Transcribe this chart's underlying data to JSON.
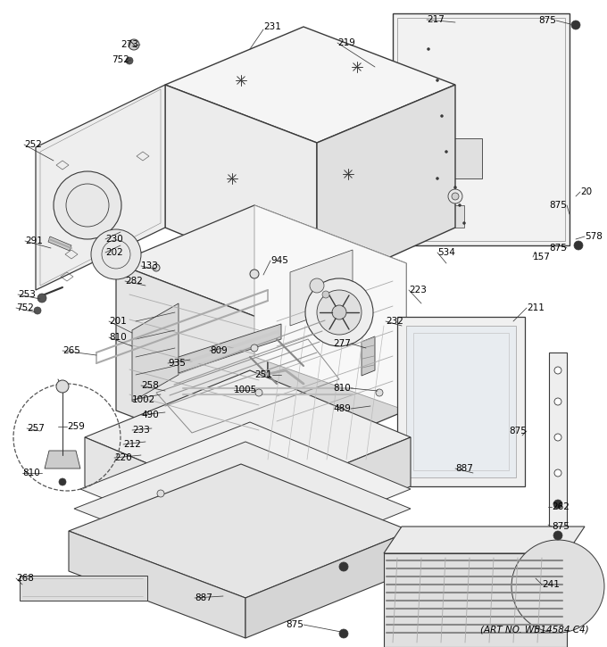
{
  "footer": "(ART NO. WB14584 C4)",
  "bg_color": "#ffffff",
  "lc": "#3a3a3a",
  "tc": "#000000",
  "fig_w": 6.8,
  "fig_h": 7.25,
  "dpi": 100
}
